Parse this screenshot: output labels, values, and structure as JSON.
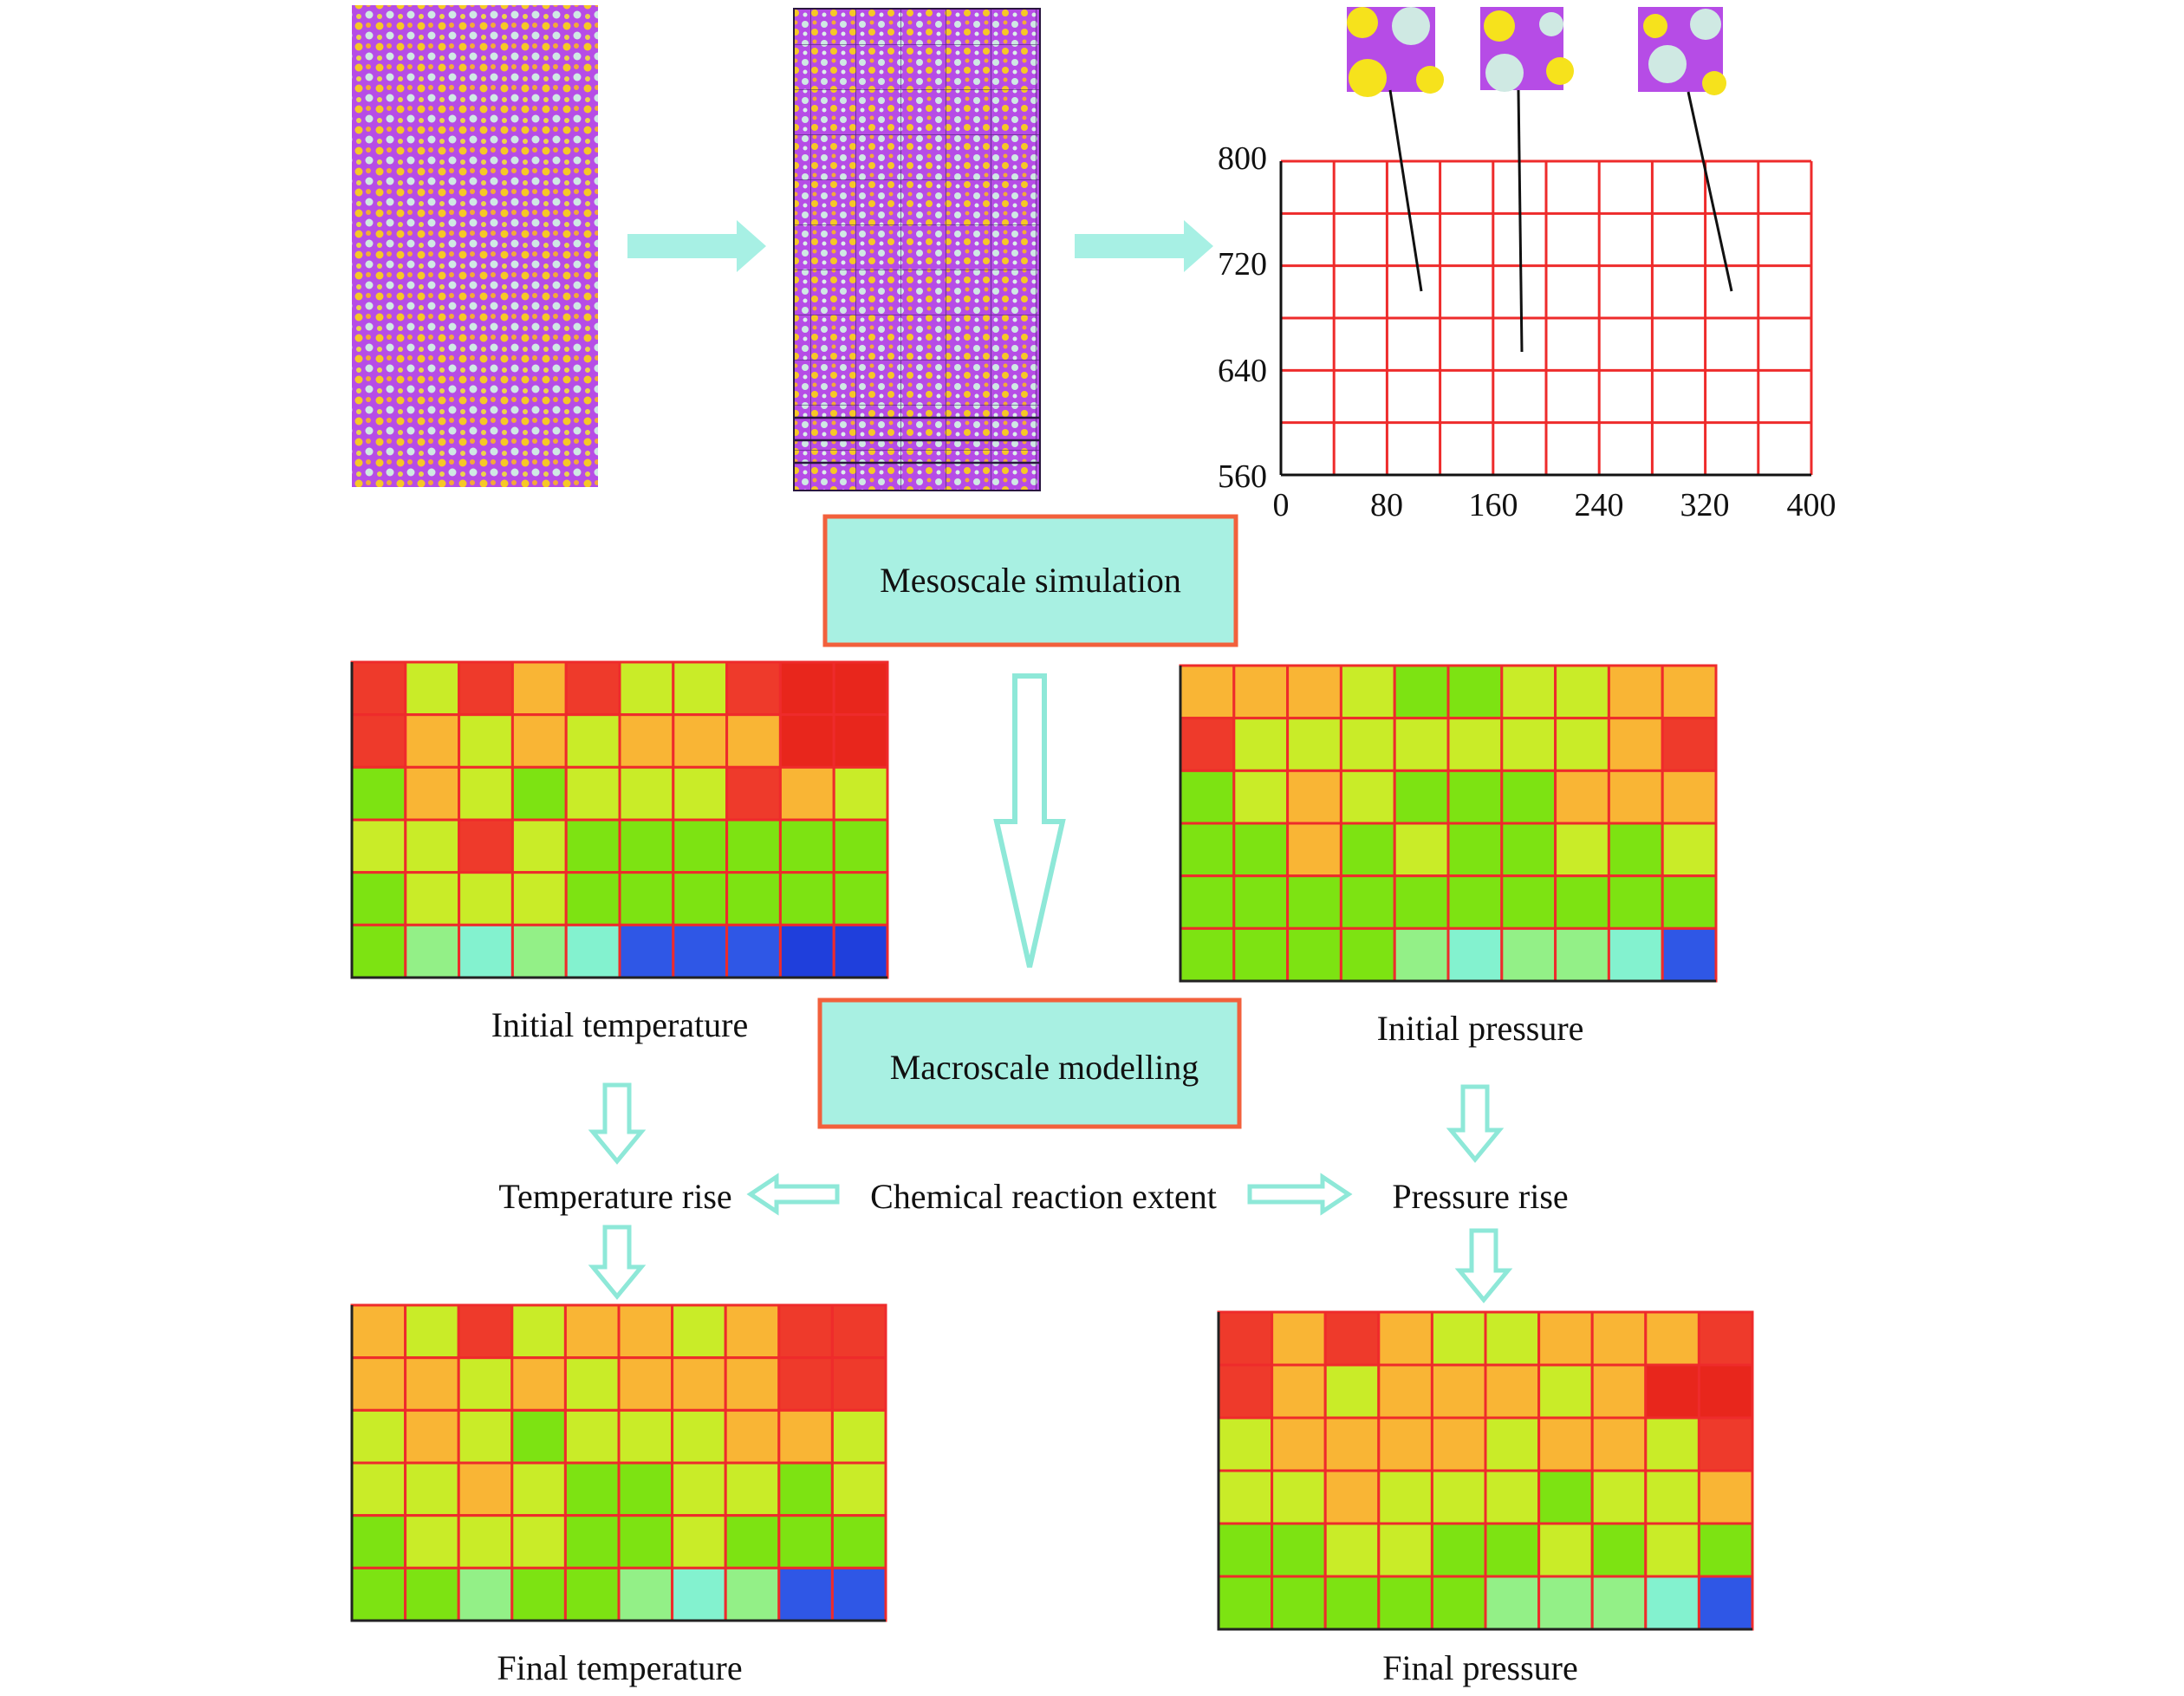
{
  "axis": {
    "y_ticks": [
      "800",
      "720",
      "640",
      "560"
    ],
    "x_ticks": [
      "0",
      "80",
      "160",
      "240",
      "320",
      "400"
    ]
  },
  "labels": {
    "mesoscale": "Mesoscale simulation",
    "macroscale": "Macroscale modelling",
    "initial_temperature": "Initial temperature",
    "initial_pressure": "Initial pressure",
    "temperature_rise": "Temperature rise",
    "chemical_reaction": "Chemical reaction extent",
    "pressure_rise": "Pressure rise",
    "final_temperature": "Final temperature",
    "final_pressure": "Final pressure"
  },
  "colors": {
    "arrow_fill": "#a7f0e4",
    "arrow_stroke": "#8ee8d8",
    "box_fill": "#a8f0e2",
    "box_border": "#f2603c",
    "grid_red": "#ee2b2b",
    "matrix_purple": "#b64ce6",
    "palette": {
      "R": "#ee3a2b",
      "r": "#e8261c",
      "O": "#f9b535",
      "Y": "#c9ec28",
      "L": "#a8ef1e",
      "G": "#7de312",
      "g": "#6fd61a",
      "P": "#93f087",
      "C": "#83f2cf",
      "B": "#2f57e6",
      "b": "#1f3fdc"
    }
  },
  "heatmaps": {
    "initial_temperature": [
      "RYRORYYRrr",
      "ROYOYOOOrr",
      "GOYGYYYROY",
      "YYRYGGGGGG",
      "GYYYGGGGGG",
      "GPCPCBBBbb"
    ],
    "initial_pressure": [
      "OOOYGGYYOO",
      "RYYYYYYYOR",
      "GYOYGGGOOO",
      "GGOGYGGYGY",
      "GGGGGGGGGG",
      "GGGGPCPPCB"
    ],
    "final_temperature": [
      "OYRYOOYORR",
      "OOYOYOOORR",
      "YOYGYYYOOY",
      "YYOYGGYYGY",
      "GYYYGGYGGG",
      "GGPGGPCPBB"
    ],
    "final_pressure": [
      "ROROYYOOOR",
      "ROYOOOYOrr",
      "YOOOOYOOYR",
      "YYOYYYGYYO",
      "GGYYGGYGYG",
      "GGGGGPPPCB"
    ]
  }
}
